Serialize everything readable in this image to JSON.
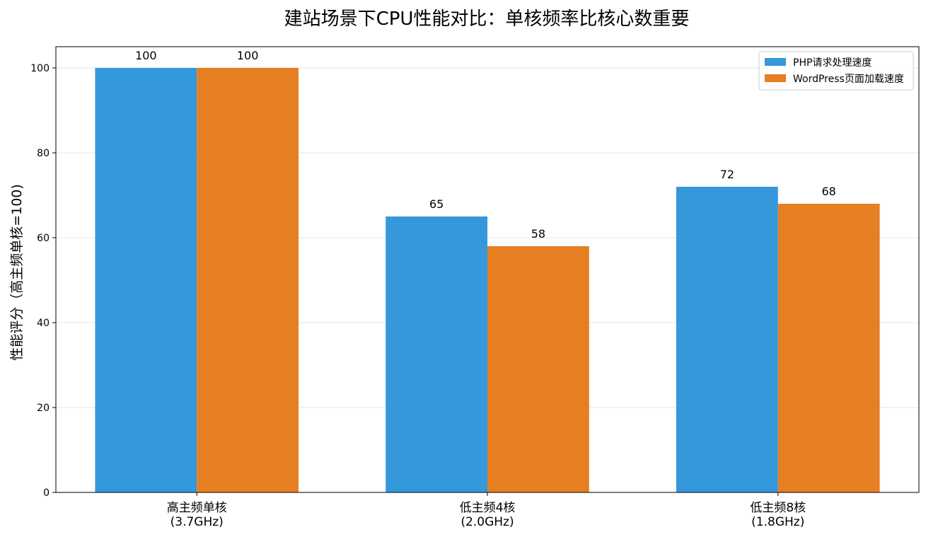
{
  "chart_data": {
    "type": "bar",
    "title": "建站场景下CPU性能对比：单核频率比核心数重要",
    "xlabel": "",
    "ylabel": "性能评分（高主频单核=100)",
    "categories": [
      [
        "高主频单核",
        "(3.7GHz)"
      ],
      [
        "低主频4核",
        "(2.0GHz)"
      ],
      [
        "低主频8核",
        "(1.8GHz)"
      ]
    ],
    "series": [
      {
        "name": "PHP请求处理速度",
        "color": "#3498db",
        "values": [
          100,
          65,
          72
        ]
      },
      {
        "name": "WordPress页面加载速度",
        "color": "#e67e22",
        "values": [
          100,
          58,
          68
        ]
      }
    ],
    "ylim": [
      0,
      105
    ],
    "yticks": [
      0,
      20,
      40,
      60,
      80,
      100
    ],
    "grid": true,
    "legend_position": "top-right",
    "show_data_labels": true
  }
}
